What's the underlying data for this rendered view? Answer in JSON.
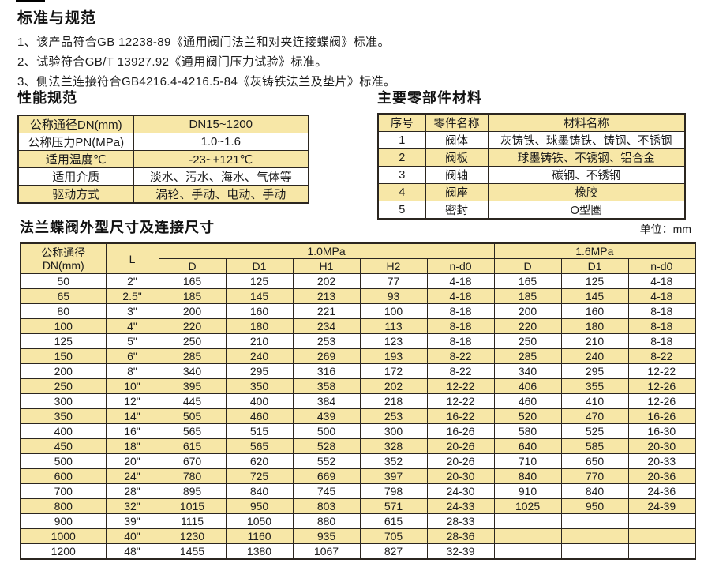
{
  "colors": {
    "row_highlight": "#f7e7a7",
    "table_border": "#2b2620",
    "text": "#1a1a1a"
  },
  "standards": {
    "title": "标准与规范",
    "items": [
      "1、该产品符合GB 12238-89《通用阀门法兰和对夹连接蝶阀》标准。",
      "2、试验符合GB/T 13927.92《通用阀门压力试验》标准。",
      "3、侧法兰连接符合GB4216.4-4216.5-84《灰铸铁法兰及垫片》标准。"
    ]
  },
  "performance": {
    "title": "性能规范",
    "rows": [
      [
        "公称通径DN(mm)",
        "DN15~1200"
      ],
      [
        "公称压力PN(MPa)",
        "1.0~1.6"
      ],
      [
        "适用温度℃",
        "-23~+121℃"
      ],
      [
        "适用介质",
        "淡水、污水、海水、气体等"
      ],
      [
        "驱动方式",
        "涡轮、手动、电动、手动"
      ]
    ]
  },
  "materials": {
    "title": "主要零部件材料",
    "headers": [
      "序号",
      "零件名称",
      "材料名称"
    ],
    "rows": [
      [
        "1",
        "阀体",
        "灰铸铁、球墨铸铁、铸钢、不锈钢"
      ],
      [
        "2",
        "阀板",
        "球墨铸铁、不锈钢、铝合金"
      ],
      [
        "3",
        "阀轴",
        "碳钢、不锈钢"
      ],
      [
        "4",
        "阀座",
        "橡胶"
      ],
      [
        "5",
        "密封",
        "O型圈"
      ]
    ]
  },
  "dimensions": {
    "title": "法兰蝶阀外型尺寸及连接尺寸",
    "unit_label": "单位：mm",
    "dn_header": "公称通径\nDN(mm)",
    "l_header": "L",
    "group_10": "1.0MPa",
    "group_16": "1.6MPa",
    "sub_headers": [
      "D",
      "D1",
      "H1",
      "H2",
      "n-d0",
      "D",
      "D1",
      "n-d0"
    ],
    "rows": [
      [
        "50",
        "2\"",
        "165",
        "125",
        "202",
        "77",
        "4-18",
        "165",
        "125",
        "4-18"
      ],
      [
        "65",
        "2.5\"",
        "185",
        "145",
        "213",
        "93",
        "4-18",
        "185",
        "145",
        "4-18"
      ],
      [
        "80",
        "3\"",
        "200",
        "160",
        "221",
        "100",
        "8-18",
        "200",
        "160",
        "8-18"
      ],
      [
        "100",
        "4\"",
        "220",
        "180",
        "234",
        "113",
        "8-18",
        "220",
        "180",
        "8-18"
      ],
      [
        "125",
        "5\"",
        "250",
        "210",
        "253",
        "123",
        "8-18",
        "250",
        "210",
        "8-18"
      ],
      [
        "150",
        "6\"",
        "285",
        "240",
        "269",
        "193",
        "8-22",
        "285",
        "240",
        "8-22"
      ],
      [
        "200",
        "8\"",
        "340",
        "295",
        "316",
        "172",
        "8-22",
        "340",
        "295",
        "12-22"
      ],
      [
        "250",
        "10\"",
        "395",
        "350",
        "358",
        "202",
        "12-22",
        "406",
        "355",
        "12-26"
      ],
      [
        "300",
        "12\"",
        "445",
        "400",
        "384",
        "218",
        "12-22",
        "460",
        "410",
        "12-26"
      ],
      [
        "350",
        "14\"",
        "505",
        "460",
        "439",
        "253",
        "16-22",
        "520",
        "470",
        "16-26"
      ],
      [
        "400",
        "16\"",
        "565",
        "515",
        "500",
        "300",
        "16-26",
        "580",
        "525",
        "16-30"
      ],
      [
        "450",
        "18\"",
        "615",
        "565",
        "528",
        "328",
        "20-26",
        "640",
        "585",
        "20-30"
      ],
      [
        "500",
        "20\"",
        "670",
        "620",
        "552",
        "352",
        "20-26",
        "710",
        "650",
        "20-33"
      ],
      [
        "600",
        "24\"",
        "780",
        "725",
        "669",
        "397",
        "20-30",
        "840",
        "770",
        "20-36"
      ],
      [
        "700",
        "28\"",
        "895",
        "840",
        "745",
        "798",
        "24-30",
        "910",
        "840",
        "24-36"
      ],
      [
        "800",
        "32\"",
        "1015",
        "950",
        "803",
        "571",
        "24-33",
        "1025",
        "950",
        "24-39"
      ],
      [
        "900",
        "39\"",
        "1115",
        "1050",
        "880",
        "615",
        "28-33",
        "",
        "",
        ""
      ],
      [
        "1000",
        "40\"",
        "1230",
        "1160",
        "935",
        "705",
        "28-36",
        "",
        "",
        ""
      ],
      [
        "1200",
        "48\"",
        "1455",
        "1380",
        "1067",
        "827",
        "32-39",
        "",
        "",
        ""
      ]
    ]
  }
}
